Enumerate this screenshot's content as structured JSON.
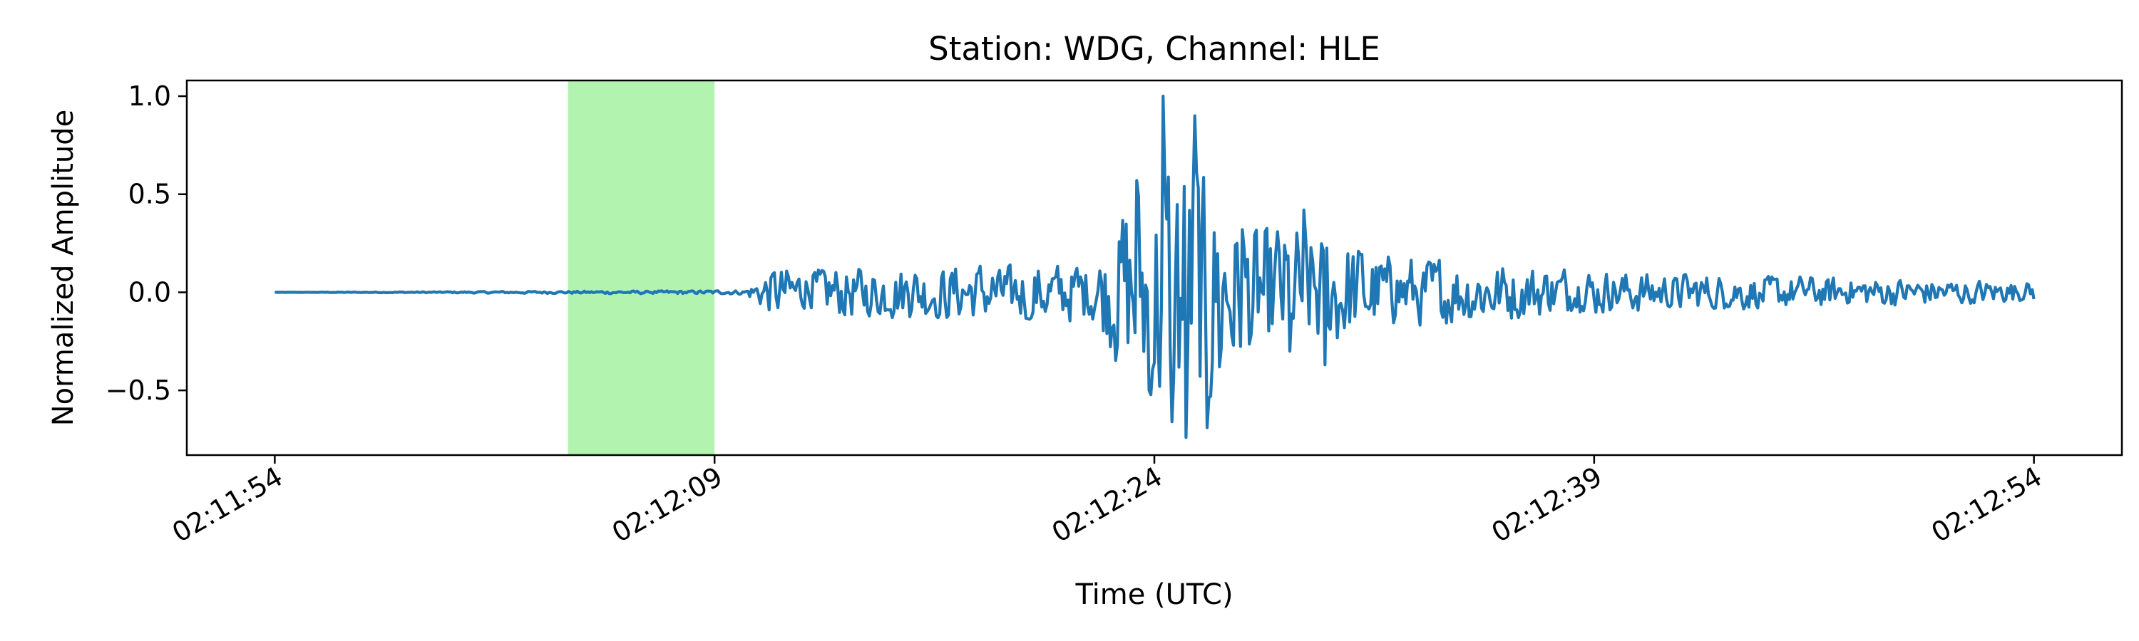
{
  "chart_data": {
    "type": "line",
    "title": "Station: WDG, Channel: HLE",
    "xlabel": "Time (UTC)",
    "ylabel": "Normalized Amplitude",
    "xlim": [
      "02:11:51",
      "02:12:57"
    ],
    "ylim": [
      -0.83,
      1.08
    ],
    "x_ticks": [
      "02:11:54",
      "02:12:09",
      "02:12:24",
      "02:12:39",
      "02:12:54"
    ],
    "y_ticks": [
      1.0,
      0.5,
      0.0,
      -0.5
    ],
    "y_tick_labels": [
      "1.0",
      "0.5",
      "0.0",
      "−0.5"
    ],
    "grid": false,
    "highlight_window": {
      "start": "02:12:04",
      "end": "02:12:09",
      "color": "#b3f3b0"
    },
    "series": [
      {
        "color": "#1f77b4",
        "x_start": "02:11:54",
        "x_end": "02:12:54",
        "envelope": [
          {
            "time": "02:11:54",
            "amplitude": 0.0
          },
          {
            "time": "02:12:10",
            "amplitude": 0.01
          },
          {
            "time": "02:12:11",
            "amplitude": 0.12
          },
          {
            "time": "02:12:22",
            "amplitude": 0.15
          },
          {
            "time": "02:12:23",
            "amplitude": 0.45
          },
          {
            "time": "02:12:25",
            "amplitude": 0.8
          },
          {
            "time": "02:12:27",
            "amplitude": 0.35
          },
          {
            "time": "02:12:30",
            "amplitude": 0.3
          },
          {
            "time": "02:12:32",
            "amplitude": 0.18
          },
          {
            "time": "02:12:40",
            "amplitude": 0.1
          },
          {
            "time": "02:12:54",
            "amplitude": 0.05
          }
        ],
        "peaks": [
          {
            "time": "02:12:23.4",
            "amplitude": 0.57
          },
          {
            "time": "02:12:23.8",
            "amplitude": -0.5
          },
          {
            "time": "02:12:24.3",
            "amplitude": 1.0
          },
          {
            "time": "02:12:24.6",
            "amplitude": -0.66
          },
          {
            "time": "02:12:25.1",
            "amplitude": -0.74
          },
          {
            "time": "02:12:25.4",
            "amplitude": 0.9
          },
          {
            "time": "02:12:25.8",
            "amplitude": -0.69
          },
          {
            "time": "02:12:26.2",
            "amplitude": -0.38
          },
          {
            "time": "02:12:27.0",
            "amplitude": 0.32
          },
          {
            "time": "02:12:28.6",
            "amplitude": -0.3
          },
          {
            "time": "02:12:29.1",
            "amplitude": 0.42
          },
          {
            "time": "02:12:29.8",
            "amplitude": -0.37
          }
        ]
      }
    ]
  }
}
